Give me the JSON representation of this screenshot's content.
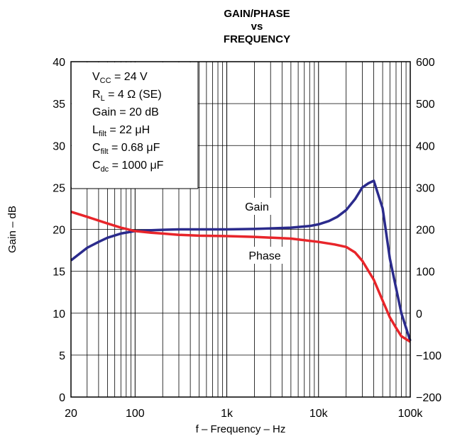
{
  "chart_data": {
    "type": "line",
    "title": [
      "GAIN/PHASE",
      "vs",
      "FREQUENCY"
    ],
    "xlabel": "f – Frequency – Hz",
    "ylabel_left": "Gain – dB",
    "ylabel_right": "",
    "x_scale": "log",
    "xlim": [
      20,
      100000
    ],
    "ylim_left": [
      0,
      40
    ],
    "ylim_right": [
      -200,
      600
    ],
    "grid": true,
    "x_ticks": [
      {
        "value": 20,
        "label": "20"
      },
      {
        "value": 100,
        "label": "100"
      },
      {
        "value": 1000,
        "label": "1k"
      },
      {
        "value": 10000,
        "label": "10k"
      },
      {
        "value": 100000,
        "label": "100k"
      }
    ],
    "y_ticks_left": [
      0,
      5,
      10,
      15,
      20,
      25,
      30,
      35,
      40
    ],
    "y_ticks_right": [
      -200,
      -100,
      0,
      100,
      200,
      300,
      400,
      500,
      600
    ],
    "conditions": [
      {
        "main": "V",
        "sub": "CC",
        "rest": " = 24 V"
      },
      {
        "main": "R",
        "sub": "L",
        "rest": " = 4 Ω (SE)"
      },
      {
        "main": "Gain = 20 dB",
        "sub": "",
        "rest": ""
      },
      {
        "main": "L",
        "sub": "filt",
        "rest": " = 22 μH"
      },
      {
        "main": "C",
        "sub": "filt",
        "rest": " = 0.68 μF"
      },
      {
        "main": "C",
        "sub": "dc",
        "rest": " = 1000 μF"
      }
    ],
    "series": [
      {
        "name": "Gain",
        "axis": "left",
        "color": "#2b2b8c",
        "x": [
          20,
          30,
          40,
          50,
          70,
          100,
          150,
          200,
          300,
          500,
          1000,
          2000,
          5000,
          8000,
          10000,
          13000,
          16000,
          20000,
          25000,
          30000,
          35000,
          40000,
          50000,
          60000,
          80000,
          100000
        ],
        "y": [
          16.3,
          17.8,
          18.5,
          19.0,
          19.5,
          19.8,
          19.9,
          19.95,
          20.0,
          20.0,
          20.0,
          20.05,
          20.2,
          20.4,
          20.6,
          21.0,
          21.5,
          22.3,
          23.6,
          25.0,
          25.5,
          25.8,
          22.5,
          16.5,
          10.0,
          6.7
        ]
      },
      {
        "name": "Phase",
        "axis": "right",
        "color": "#e8252a",
        "x": [
          20,
          30,
          50,
          70,
          100,
          150,
          200,
          300,
          500,
          1000,
          2000,
          5000,
          10000,
          15000,
          20000,
          25000,
          30000,
          40000,
          50000,
          60000,
          70000,
          80000,
          100000
        ],
        "y": [
          242,
          230,
          214,
          204,
          196,
          192,
          190,
          187,
          185,
          184,
          182,
          178,
          170,
          164,
          158,
          145,
          125,
          80,
          30,
          -10,
          -35,
          -55,
          -68
        ]
      }
    ]
  }
}
